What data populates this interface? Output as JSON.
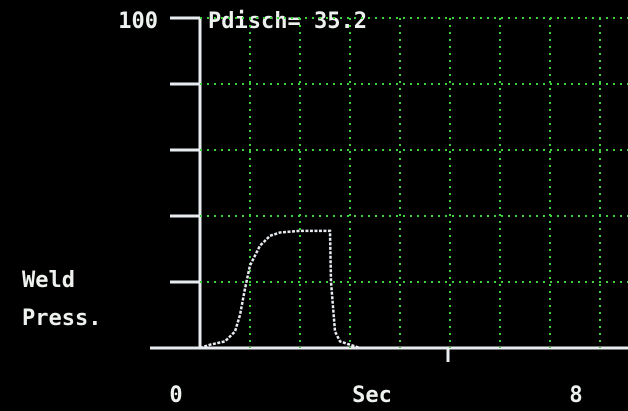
{
  "chart_data": {
    "type": "line",
    "annotation": "Pdisch= 35.2",
    "ylabel": "Weld Press.",
    "xlabel": "Sec",
    "x": [
      0,
      0.2,
      0.5,
      0.7,
      0.8,
      0.9,
      1.0,
      1.2,
      1.4,
      1.6,
      2.0,
      2.6,
      2.62,
      2.7,
      2.8,
      3.0,
      3.2
    ],
    "values": [
      0,
      1,
      2,
      5,
      10,
      18,
      25,
      31,
      34,
      35,
      35.5,
      35.5,
      20,
      5,
      2,
      1,
      0
    ],
    "color": "#e8ecf0",
    "xlim": [
      0,
      8.56
    ],
    "ylim": [
      0,
      100
    ],
    "xticks": [
      0,
      8
    ],
    "yticks": [
      100
    ],
    "xgrid": [
      1,
      2,
      3,
      4,
      5,
      6,
      7,
      8
    ],
    "ygrid": [
      20,
      40,
      60,
      80,
      100
    ],
    "grid_color": "#3fd23f",
    "grid": true
  }
}
